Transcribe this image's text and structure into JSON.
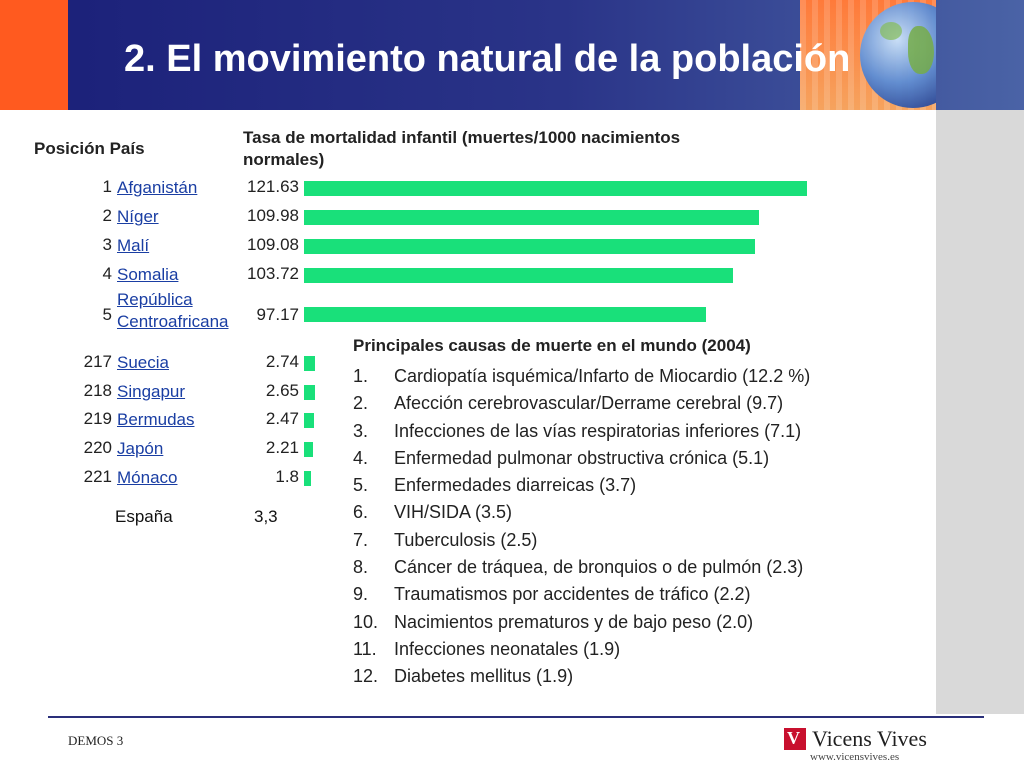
{
  "header": {
    "title": "2. El movimiento natural de la población"
  },
  "table": {
    "col_position_country": "Posición País",
    "col_rate": "Tasa de mortalidad infantil (muertes/1000 nacimientos normales)"
  },
  "chart_data": {
    "type": "bar",
    "orientation": "horizontal",
    "title": "Tasa de mortalidad infantil (muertes/1000 nacimientos normales)",
    "xlabel": "",
    "ylabel": "",
    "xlim": [
      0,
      121.63
    ],
    "grid": false,
    "bar_color": "#19e07a",
    "rows": [
      {
        "rank": "1",
        "country": "Afganistán",
        "value": 121.63,
        "label": "121.63"
      },
      {
        "rank": "2",
        "country": "Níger",
        "value": 109.98,
        "label": "109.98"
      },
      {
        "rank": "3",
        "country": "Malí",
        "value": 109.08,
        "label": "109.08"
      },
      {
        "rank": "4",
        "country": "Somalia",
        "value": 103.72,
        "label": "103.72"
      },
      {
        "rank": "5",
        "country": "República Centroafricana",
        "value": 97.17,
        "label": "97.17"
      },
      {
        "rank": "217",
        "country": "Suecia",
        "value": 2.74,
        "label": "2.74"
      },
      {
        "rank": "218",
        "country": "Singapur",
        "value": 2.65,
        "label": "2.65"
      },
      {
        "rank": "219",
        "country": "Bermudas",
        "value": 2.47,
        "label": "2.47"
      },
      {
        "rank": "220",
        "country": "Japón",
        "value": 2.21,
        "label": "2.21"
      },
      {
        "rank": "221",
        "country": "Mónaco",
        "value": 1.8,
        "label": "1.8"
      }
    ],
    "extra": {
      "country": "España",
      "value": 3.3,
      "label": "3,3"
    }
  },
  "causes": {
    "title": "Principales causas de muerte en el mundo (2004)",
    "items": [
      {
        "num": "1.",
        "text": "Cardiopatía isquémica/Infarto de Miocardio (12.2 %)"
      },
      {
        "num": "2.",
        "text": "Afección cerebrovascular/Derrame cerebral (9.7)"
      },
      {
        "num": "3.",
        "text": "Infecciones de las vías respiratorias inferiores (7.1)"
      },
      {
        "num": "4.",
        "text": "Enfermedad pulmonar obstructiva crónica (5.1)"
      },
      {
        "num": "5.",
        "text": "Enfermedades diarreicas (3.7)"
      },
      {
        "num": "6.",
        "text": "VIH/SIDA (3.5)"
      },
      {
        "num": "7.",
        "text": "Tuberculosis (2.5)"
      },
      {
        "num": "8.",
        "text": "Cáncer de tráquea, de bronquios o de pulmón (2.3)"
      },
      {
        "num": "9.",
        "text": "Traumatismos por accidentes de tráfico (2.2)"
      },
      {
        "num": "10.",
        "text": "Nacimientos prematuros y de bajo peso (2.0)"
      },
      {
        "num": "11.",
        "text": "Infecciones neonatales (1.9)"
      },
      {
        "num": "12.",
        "text": "Diabetes mellitus (1.9)"
      }
    ]
  },
  "footer": {
    "left": "DEMOS 3",
    "brand": "Vicens Vives",
    "url": "www.vicensvives.es"
  },
  "colors": {
    "header_bg": "#1a1f78",
    "accent_orange": "#ff5a1f",
    "bar_green": "#19e07a",
    "link_blue": "#1a3ea3",
    "side_panel": "#d9d9d9",
    "brand_red": "#c8102e"
  }
}
